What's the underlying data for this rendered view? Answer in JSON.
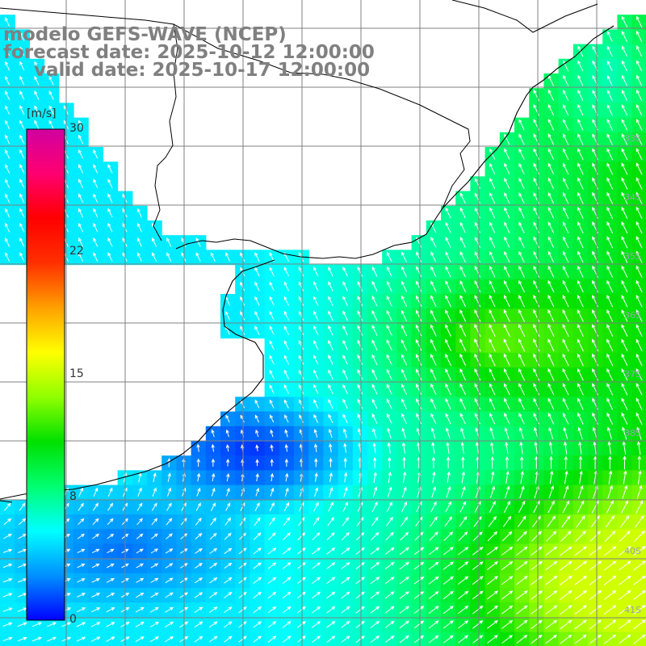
{
  "titles": {
    "line1": "modelo GEFS-WAVE (NCEP)",
    "line2": "forecast date: 2025-10-12 12:00:00",
    "line3": "valid date: 2025-10-17 12:00:00"
  },
  "colorbar": {
    "unit": "[m/s]",
    "ticks": [
      "30",
      "22",
      "15",
      "8",
      "0"
    ],
    "colors": [
      "#0000ff",
      "#0090ff",
      "#00ffff",
      "#00ff70",
      "#00e000",
      "#90ff00",
      "#ffff00",
      "#ffa000",
      "#ff3000",
      "#ff0000",
      "#ff0070",
      "#d000a0"
    ]
  },
  "lat_labels": [
    "33S",
    "34S",
    "35S",
    "36S",
    "37S",
    "38S",
    "40S",
    "41S"
  ],
  "map": {
    "land_color": "#ffffff",
    "coast_color": "#000000",
    "grid_color": "#808080",
    "arrow_color": "#ffffff"
  }
}
